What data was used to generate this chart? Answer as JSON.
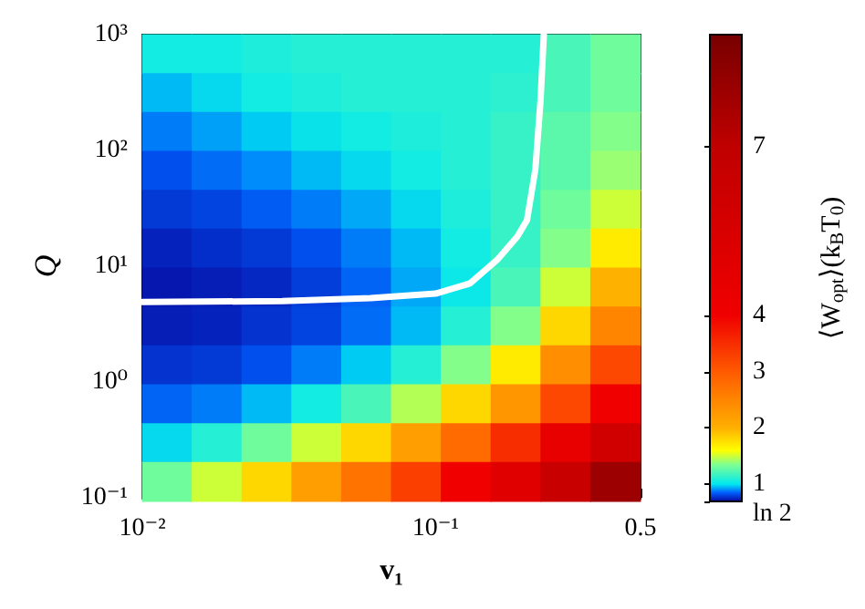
{
  "chart_data": {
    "type": "heatmap",
    "xlabel": "v₁",
    "ylabel": "Q",
    "clabel": "⟨W$_{opt}$⟩(k$_{B}$T$_{0}$)",
    "log": "xy",
    "xlim": [
      0.01,
      0.5
    ],
    "ylim": [
      0.1,
      1000
    ],
    "xticks": [
      {
        "value": 0.01,
        "label": "10⁻²"
      },
      {
        "value": 0.1,
        "label": "10⁻¹"
      },
      0.5
    ],
    "yticks": [
      {
        "value": 0.1,
        "label": "10⁻¹"
      },
      {
        "value": 1,
        "label": "10⁰"
      },
      {
        "value": 10,
        "label": "10¹"
      },
      {
        "value": 100,
        "label": "10²"
      },
      {
        "value": 1000,
        "label": "10³"
      }
    ],
    "clim": [
      0.693,
      9
    ],
    "cticks": [
      {
        "value": 0.693,
        "label": "ln 2"
      },
      1,
      2,
      3,
      4,
      7
    ],
    "cells": [
      [
        1.05,
        1.05,
        1.08,
        1.1,
        1.1,
        1.1,
        1.1,
        1.1,
        1.2,
        1.3
      ],
      [
        0.95,
        1.0,
        1.05,
        1.08,
        1.1,
        1.1,
        1.1,
        1.12,
        1.2,
        1.3
      ],
      [
        0.88,
        0.92,
        0.97,
        1.02,
        1.05,
        1.08,
        1.1,
        1.15,
        1.25,
        1.35
      ],
      [
        0.82,
        0.86,
        0.9,
        0.95,
        1.0,
        1.05,
        1.1,
        1.15,
        1.25,
        1.4
      ],
      [
        0.78,
        0.8,
        0.84,
        0.88,
        0.93,
        1.0,
        1.08,
        1.15,
        1.3,
        1.5
      ],
      [
        0.74,
        0.76,
        0.78,
        0.82,
        0.88,
        0.95,
        1.05,
        1.15,
        1.35,
        1.7
      ],
      [
        0.72,
        0.73,
        0.75,
        0.79,
        0.85,
        0.93,
        1.03,
        1.2,
        1.5,
        2.0
      ],
      [
        0.73,
        0.74,
        0.77,
        0.8,
        0.86,
        0.95,
        1.1,
        1.35,
        1.8,
        2.5
      ],
      [
        0.77,
        0.78,
        0.82,
        0.88,
        0.97,
        1.1,
        1.35,
        1.7,
        2.4,
        3.2
      ],
      [
        0.85,
        0.88,
        0.95,
        1.05,
        1.2,
        1.45,
        1.8,
        2.3,
        3.2,
        4.0
      ],
      [
        1.0,
        1.1,
        1.3,
        1.5,
        1.8,
        2.2,
        2.8,
        3.5,
        4.5,
        6.0
      ],
      [
        1.3,
        1.5,
        1.8,
        2.2,
        2.7,
        3.3,
        4.0,
        5.0,
        6.5,
        8.0
      ]
    ],
    "series": [
      {
        "type": "line",
        "color": "#ffffff",
        "line_style": "solid",
        "marker": "none",
        "x": [
          0.01,
          0.03,
          0.06,
          0.1,
          0.131,
          0.163,
          0.19,
          0.205,
          0.219,
          0.228,
          0.234
        ],
        "values": [
          4.9,
          5.0,
          5.3,
          5.8,
          7.1,
          11.5,
          18,
          25,
          69,
          270,
          1000
        ]
      }
    ]
  }
}
